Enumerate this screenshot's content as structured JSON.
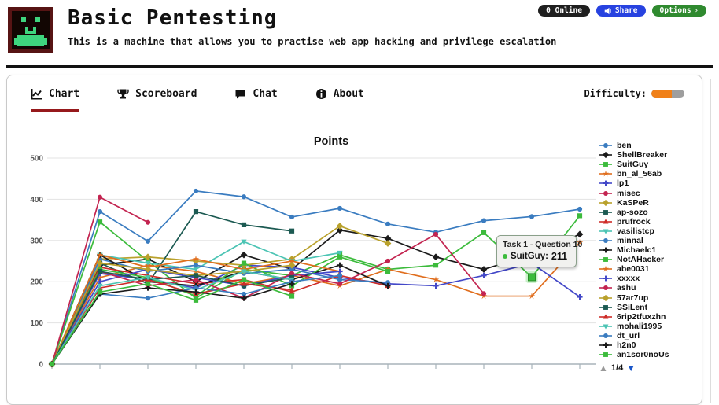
{
  "header": {
    "title": "Basic Pentesting",
    "subtitle": "This is a machine that allows you to practise web app hacking and privilege escalation",
    "online_label": "0 Online",
    "share_label": "Share",
    "options_label": "Options",
    "options_chevron": "›"
  },
  "tabs": [
    {
      "label": "Chart",
      "active": true
    },
    {
      "label": "Scoreboard",
      "active": false
    },
    {
      "label": "Chat",
      "active": false
    },
    {
      "label": "About",
      "active": false
    }
  ],
  "difficulty": {
    "label": "Difficulty:",
    "percent": 62,
    "fill_color": "#f08018",
    "track_color": "#9e9e9e"
  },
  "legend": {
    "pagination": "1/4",
    "up_arrow": "▲",
    "down_arrow": "▼"
  },
  "chart_data": {
    "type": "line",
    "title": "Points",
    "xlabel": "",
    "ylabel": "",
    "ylim": [
      0,
      500
    ],
    "yticks": [
      0,
      100,
      200,
      300,
      400,
      500
    ],
    "x": [
      0,
      1,
      2,
      3,
      4,
      5,
      6,
      7,
      8,
      9,
      10,
      11
    ],
    "x_tick_labels": [],
    "grid": true,
    "legend_position": "right",
    "tooltip": {
      "title": "Task 1 - Question 10",
      "series_label": "SuitGuy:",
      "value": "211"
    },
    "highlight": {
      "series": "SuitGuy",
      "x_index": 10,
      "value": 211,
      "color": "#3cbb3c"
    },
    "series": [
      {
        "name": "ben",
        "color": "#3a7cc0",
        "marker": "circle",
        "values": [
          0,
          370,
          298,
          420,
          406,
          357,
          378,
          340,
          320,
          348,
          358,
          376
        ]
      },
      {
        "name": "ShellBreaker",
        "color": "#1b1b1b",
        "marker": "diamond",
        "values": [
          0,
          240,
          255,
          200,
          265,
          230,
          325,
          305,
          260,
          230,
          265,
          315
        ]
      },
      {
        "name": "SuitGuy",
        "color": "#3cbb3c",
        "marker": "square",
        "values": [
          0,
          345,
          250,
          160,
          230,
          215,
          265,
          230,
          240,
          319,
          211,
          360
        ]
      },
      {
        "name": "bn_al_56ab",
        "color": "#e06e1e",
        "marker": "star",
        "values": [
          0,
          210,
          240,
          225,
          195,
          215,
          190,
          230,
          205,
          165,
          165,
          295
        ]
      },
      {
        "name": "lp1",
        "color": "#4348c8",
        "marker": "plus",
        "values": [
          0,
          220,
          205,
          185,
          240,
          235,
          210,
          195,
          190,
          215,
          245,
          163
        ]
      },
      {
        "name": "misec",
        "color": "#c32450",
        "marker": "circle",
        "values": [
          0,
          405,
          344,
          null,
          null,
          null,
          null,
          null,
          null,
          null,
          null,
          null
        ]
      },
      {
        "name": "KaSPeR",
        "color": "#b9a12c",
        "marker": "diamond",
        "values": [
          0,
          255,
          260,
          250,
          240,
          255,
          335,
          293,
          null,
          null,
          null,
          null
        ]
      },
      {
        "name": "ap-sozo",
        "color": "#1c5a52",
        "marker": "square",
        "values": [
          0,
          245,
          195,
          370,
          338,
          323,
          null,
          null,
          null,
          null,
          null,
          null
        ]
      },
      {
        "name": "prufrock",
        "color": "#ce2c28",
        "marker": "triangle-up",
        "values": [
          0,
          235,
          215,
          195,
          205,
          175,
          215,
          190,
          null,
          null,
          null,
          null
        ]
      },
      {
        "name": "vasilistcp",
        "color": "#4cc4b4",
        "marker": "triangle-down",
        "values": [
          0,
          265,
          245,
          230,
          297,
          250,
          270,
          null,
          null,
          null,
          null,
          null
        ]
      },
      {
        "name": "minnal",
        "color": "#3a7cc0",
        "marker": "circle",
        "values": [
          0,
          255,
          225,
          240,
          220,
          230,
          205,
          198,
          null,
          null,
          null,
          null
        ]
      },
      {
        "name": "Michaelc1",
        "color": "#1b1b1b",
        "marker": "plus",
        "values": [
          0,
          265,
          200,
          190,
          225,
          205,
          240,
          190,
          null,
          null,
          null,
          null
        ]
      },
      {
        "name": "NotAHacker",
        "color": "#3cbb3c",
        "marker": "square",
        "values": [
          0,
          230,
          210,
          165,
          245,
          190,
          260,
          225,
          null,
          null,
          null,
          null
        ]
      },
      {
        "name": "abe0031",
        "color": "#e06e1e",
        "marker": "star",
        "values": [
          0,
          265,
          235,
          255,
          230,
          250,
          225,
          null,
          null,
          null,
          null,
          null
        ]
      },
      {
        "name": "xxxxx",
        "color": "#4348c8",
        "marker": "plus",
        "values": [
          0,
          200,
          230,
          210,
          190,
          215,
          225,
          null,
          null,
          null,
          null,
          null
        ]
      },
      {
        "name": "ashu",
        "color": "#c32450",
        "marker": "circle",
        "values": [
          0,
          225,
          190,
          205,
          160,
          220,
          195,
          250,
          315,
          171,
          null,
          null
        ]
      },
      {
        "name": "57ar7up",
        "color": "#b9a12c",
        "marker": "diamond",
        "values": [
          0,
          245,
          230,
          215,
          225,
          240,
          null,
          null,
          null,
          null,
          null,
          null
        ]
      },
      {
        "name": "SSiLent",
        "color": "#1c5a52",
        "marker": "square",
        "values": [
          0,
          225,
          205,
          215,
          190,
          210,
          null,
          null,
          null,
          null,
          null,
          null
        ]
      },
      {
        "name": "6rip2tfuxzhn",
        "color": "#ce2c28",
        "marker": "triangle-up",
        "values": [
          0,
          185,
          205,
          170,
          195,
          180,
          null,
          null,
          null,
          null,
          null,
          null
        ]
      },
      {
        "name": "mohali1995",
        "color": "#4cc4b4",
        "marker": "triangle-down",
        "values": [
          0,
          190,
          210,
          180,
          225,
          205,
          null,
          null,
          null,
          null,
          null,
          null
        ]
      },
      {
        "name": "dt_url",
        "color": "#3a7cc0",
        "marker": "circle",
        "values": [
          0,
          170,
          160,
          185,
          170,
          200,
          215,
          null,
          null,
          null,
          null,
          null
        ]
      },
      {
        "name": "h2n0",
        "color": "#1b1b1b",
        "marker": "plus",
        "values": [
          0,
          170,
          185,
          175,
          160,
          195,
          null,
          null,
          null,
          null,
          null,
          null
        ]
      },
      {
        "name": "an1sor0noUs",
        "color": "#3cbb3c",
        "marker": "square",
        "values": [
          0,
          175,
          195,
          155,
          205,
          165,
          null,
          null,
          null,
          null,
          null,
          null
        ]
      }
    ]
  }
}
